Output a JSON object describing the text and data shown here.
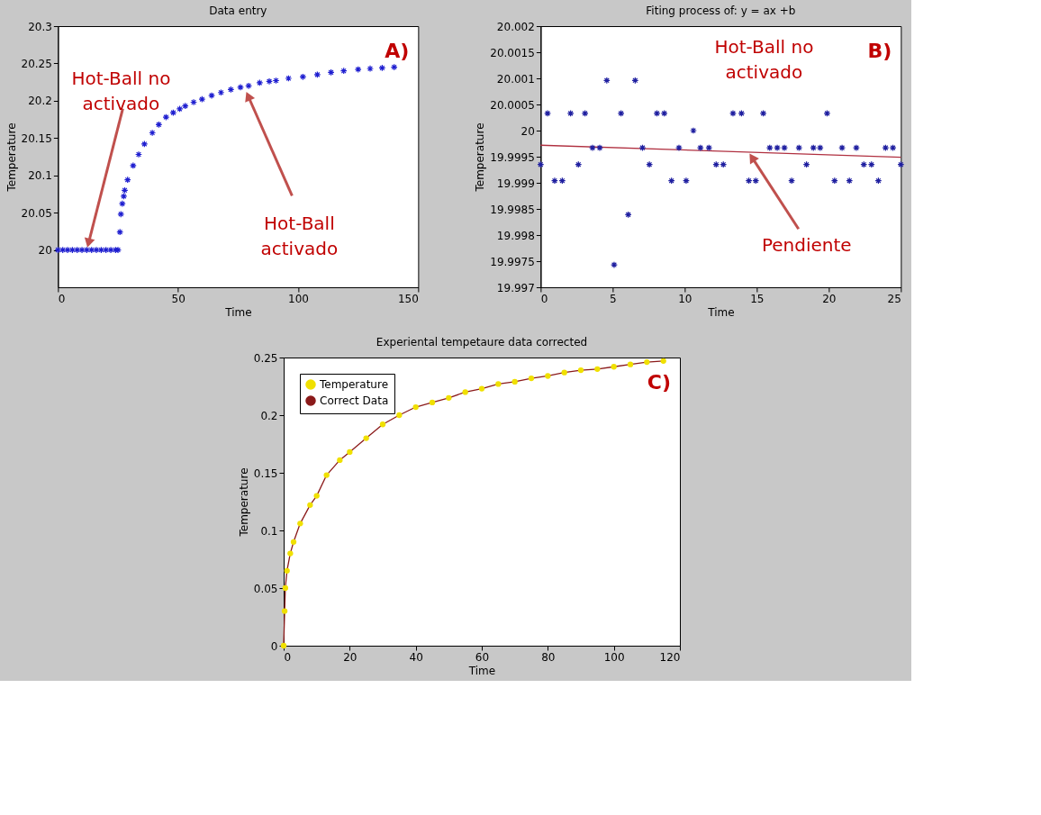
{
  "chart_data": [
    {
      "type": "scatter",
      "title": "Data entry",
      "xlabel": "Time",
      "ylabel": "Temperature",
      "xlim": [
        0,
        150
      ],
      "xticks": [
        0,
        50,
        100,
        150
      ],
      "ylim": [
        19.95,
        20.3
      ],
      "yticks": [
        20,
        20.05,
        20.1,
        20.15,
        20.2,
        20.25,
        20.3
      ],
      "grid": false,
      "legend": false,
      "marker": "cross",
      "series": [
        {
          "color": "#1f1fd0",
          "x": [
            0,
            2,
            4,
            6,
            8,
            10,
            12,
            14,
            16,
            18,
            20,
            22,
            24,
            25,
            25.8,
            26.2,
            26.8,
            27.4,
            27.8,
            29,
            31.3,
            33.6,
            36,
            39.3,
            42,
            45,
            48,
            50.7,
            53,
            56.5,
            60,
            64,
            67.9,
            72,
            76,
            79.4,
            84,
            88,
            90.8,
            96,
            102,
            108,
            113.7,
            119,
            125,
            130,
            135,
            140
          ],
          "values": [
            20.0,
            20.0,
            20.0,
            20.0,
            20.0,
            20.0,
            20.0,
            20.0,
            20.0,
            20.0,
            20.0,
            20.0,
            20.0,
            20.0,
            20.024,
            20.048,
            20.062,
            20.072,
            20.08,
            20.094,
            20.113,
            20.128,
            20.142,
            20.157,
            20.168,
            20.178,
            20.184,
            20.189,
            20.193,
            20.198,
            20.202,
            20.207,
            20.211,
            20.215,
            20.218,
            20.22,
            20.224,
            20.226,
            20.227,
            20.23,
            20.232,
            20.235,
            20.238,
            20.24,
            20.242,
            20.243,
            20.244,
            20.245
          ]
        }
      ],
      "annotations": [
        "A)",
        {
          "text": "Hot-Ball no\nactivado",
          "x": 12,
          "y": 20.0
        },
        {
          "text": "Hot-Ball\nactivado",
          "x": 78,
          "y": 20.215
        }
      ]
    },
    {
      "type": "scatter",
      "title": "Fiting process of: y = ax +b",
      "xlabel": "Time",
      "ylabel": "Temperature",
      "xlim": [
        0,
        25
      ],
      "xticks": [
        0,
        5,
        10,
        15,
        20,
        25
      ],
      "ylim": [
        19.997,
        20.002
      ],
      "yticks": [
        19.997,
        19.9975,
        19.998,
        19.9985,
        19.999,
        19.9995,
        20,
        20.0005,
        20.001,
        20.0015,
        20.002
      ],
      "grid": false,
      "legend": false,
      "marker": "cross",
      "series": [
        {
          "color": "#1f1fa0",
          "x": [
            0,
            0.48,
            0.97,
            1.5,
            2.08,
            2.62,
            3.08,
            3.6,
            4.1,
            4.59,
            5.1,
            5.58,
            6.08,
            6.56,
            7.07,
            7.55,
            8.07,
            8.58,
            9.08,
            9.6,
            10.1,
            10.6,
            11.09,
            11.68,
            12.18,
            12.68,
            13.35,
            13.94,
            14.45,
            14.93,
            15.45,
            15.9,
            16.42,
            16.92,
            17.42,
            17.93,
            18.45,
            18.93,
            19.4,
            19.88,
            20.4,
            20.92,
            21.43,
            21.91,
            22.43,
            22.96,
            23.44,
            23.94,
            24.45,
            25
          ],
          "values": [
            19.99935,
            20.00033,
            19.99904,
            19.99904,
            20.00033,
            19.99935,
            20.00033,
            19.99967,
            19.99967,
            20.00096,
            19.99743,
            20.00033,
            19.99839,
            20.00096,
            19.99967,
            19.99935,
            20.00033,
            20.00033,
            19.99904,
            19.99967,
            19.99904,
            20.0,
            19.99967,
            19.99967,
            19.99935,
            19.99935,
            20.00033,
            20.00033,
            19.99904,
            19.99904,
            20.00033,
            19.99967,
            19.99967,
            19.99967,
            19.99904,
            19.99967,
            19.99935,
            19.99967,
            19.99967,
            20.00033,
            19.99904,
            19.99967,
            19.99904,
            19.99967,
            19.99935,
            19.99935,
            19.99904,
            19.99967,
            19.99967,
            19.99935
          ]
        },
        {
          "type": "line",
          "color": "#b03040",
          "line_style": "solid",
          "marker": "none",
          "x": [
            0,
            25
          ],
          "values": [
            19.99972,
            19.99949
          ]
        }
      ],
      "annotations": [
        "B)",
        "Hot-Ball no\nactivado",
        {
          "text": "Pendiente",
          "x": 14.4,
          "y": 19.9996
        }
      ]
    },
    {
      "type": "scatter",
      "title": "Experiental tempetaure data corrected",
      "xlabel": "Time",
      "ylabel": "Temperature",
      "xlim": [
        0,
        120
      ],
      "xticks": [
        0,
        20,
        40,
        60,
        80,
        100,
        120
      ],
      "ylim": [
        0,
        0.25
      ],
      "yticks": [
        0,
        0.05,
        0.1,
        0.15,
        0.2,
        0.25
      ],
      "grid": false,
      "legend": "top left",
      "series": [
        {
          "name": "Temperature",
          "color": "#f0e000",
          "marker": "circle",
          "x": [
            0,
            0.3,
            0.5,
            1,
            2,
            3,
            5,
            8,
            10,
            13,
            17,
            20,
            25,
            30,
            35,
            40,
            45,
            50,
            55,
            60,
            65,
            70,
            75,
            80,
            85,
            90,
            95,
            100,
            105,
            110,
            115
          ],
          "values": [
            0,
            0.03,
            0.05,
            0.065,
            0.08,
            0.09,
            0.106,
            0.122,
            0.13,
            0.148,
            0.161,
            0.168,
            0.18,
            0.192,
            0.2,
            0.207,
            0.211,
            0.215,
            0.22,
            0.223,
            0.227,
            0.229,
            0.232,
            0.234,
            0.237,
            0.239,
            0.24,
            0.242,
            0.244,
            0.246,
            0.247
          ]
        },
        {
          "name": "Correct Data",
          "type": "line",
          "color": "#8b1a1a",
          "line_style": "solid",
          "marker": "none",
          "x": [
            0,
            0.3,
            0.5,
            1,
            2,
            3,
            5,
            8,
            10,
            13,
            17,
            20,
            25,
            30,
            35,
            40,
            45,
            50,
            55,
            60,
            65,
            70,
            75,
            80,
            85,
            90,
            95,
            100,
            105,
            110,
            115
          ],
          "values": [
            0,
            0.03,
            0.05,
            0.065,
            0.08,
            0.09,
            0.106,
            0.122,
            0.13,
            0.148,
            0.161,
            0.168,
            0.18,
            0.192,
            0.2,
            0.207,
            0.211,
            0.215,
            0.22,
            0.223,
            0.227,
            0.229,
            0.232,
            0.234,
            0.237,
            0.239,
            0.24,
            0.242,
            0.244,
            0.246,
            0.247
          ]
        }
      ],
      "annotations": [
        "C)"
      ]
    }
  ]
}
